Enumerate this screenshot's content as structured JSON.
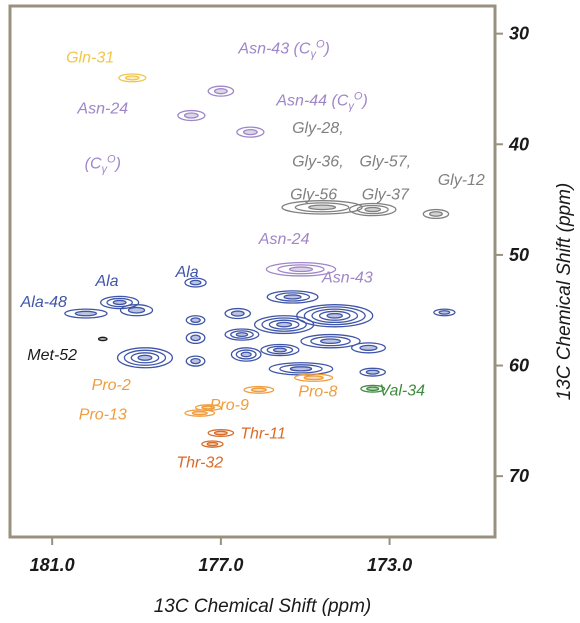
{
  "chart_data": {
    "type": "scatter",
    "subtype": "2D NMR contour spectrum",
    "x_axis": {
      "title": "13C Chemical Shift (ppm)",
      "reversed": true,
      "range": [
        182.0,
        170.5
      ],
      "ticks": [
        181.0,
        177.0,
        173.0
      ],
      "tick_labels": [
        "181.0",
        "177.0",
        "173.0"
      ]
    },
    "y_axis": {
      "title": "13C Chemical Shift (ppm)",
      "position": "right",
      "reversed": true,
      "range": [
        27.5,
        75.5
      ],
      "ticks": [
        30,
        40,
        50,
        60,
        70
      ],
      "tick_labels": [
        "30",
        "40",
        "50",
        "60",
        "70"
      ]
    },
    "grid": false,
    "colors": {
      "yellow": "#f0c64a",
      "purple": "#9f86c9",
      "gray": "#808080",
      "blue": "#3f55a8",
      "green": "#3f8b3f",
      "orange": "#ef9d3e",
      "darkorange": "#d96b28",
      "black": "#1a1a1a"
    },
    "labels": [
      {
        "text": "Gln-31",
        "x": 180.1,
        "y": 32.6,
        "color": "yellow"
      },
      {
        "text": "Asn-43 (CγO)",
        "x": 175.5,
        "y": 31.8,
        "color": "purple"
      },
      {
        "text": "Asn-44 (CγO)",
        "x": 174.6,
        "y": 36.5,
        "color": "purple"
      },
      {
        "text": "Asn-24",
        "x": 179.8,
        "y": 37.2,
        "color": "purple"
      },
      {
        "text": "(CγO)",
        "x": 179.8,
        "y": 42.2,
        "color": "purple"
      },
      {
        "text": "Gly-28,",
        "x": 174.7,
        "y": 39.0,
        "color": "gray"
      },
      {
        "text": "Gly-36,",
        "x": 174.7,
        "y": 42.0,
        "color": "gray"
      },
      {
        "text": "Gly-56",
        "x": 174.8,
        "y": 45.0,
        "color": "gray"
      },
      {
        "text": "Gly-57,",
        "x": 173.1,
        "y": 42.0,
        "color": "gray"
      },
      {
        "text": "Gly-37",
        "x": 173.1,
        "y": 45.0,
        "color": "gray"
      },
      {
        "text": "Gly-12",
        "x": 171.3,
        "y": 43.7,
        "color": "gray"
      },
      {
        "text": "Asn-24",
        "x": 175.5,
        "y": 49.0,
        "color": "purple"
      },
      {
        "text": "Asn-43",
        "x": 174.0,
        "y": 52.5,
        "color": "purple"
      },
      {
        "text": "Ala",
        "x": 179.7,
        "y": 52.8,
        "color": "blue"
      },
      {
        "text": "Ala",
        "x": 177.8,
        "y": 52.0,
        "color": "blue"
      },
      {
        "text": "Ala-48",
        "x": 181.2,
        "y": 54.7,
        "color": "blue"
      },
      {
        "text": "Met-52",
        "x": 181.0,
        "y": 59.5,
        "color": "black"
      },
      {
        "text": "Pro-2",
        "x": 179.6,
        "y": 62.2,
        "color": "orange"
      },
      {
        "text": "Pro-13",
        "x": 179.8,
        "y": 64.9,
        "color": "orange"
      },
      {
        "text": "Pro-9",
        "x": 176.8,
        "y": 64.0,
        "color": "orange"
      },
      {
        "text": "Pro-8",
        "x": 174.7,
        "y": 62.8,
        "color": "orange"
      },
      {
        "text": "Val-34",
        "x": 172.7,
        "y": 62.7,
        "color": "green"
      },
      {
        "text": "Thr-11",
        "x": 176.0,
        "y": 66.6,
        "color": "darkorange"
      },
      {
        "text": "Thr-32",
        "x": 177.5,
        "y": 69.2,
        "color": "darkorange"
      }
    ],
    "peaks": [
      {
        "x": 179.1,
        "y": 34.0,
        "rx": 0.32,
        "ry": 0.35,
        "color": "yellow",
        "levels": 2
      },
      {
        "x": 177.0,
        "y": 35.2,
        "rx": 0.3,
        "ry": 0.45,
        "color": "purple",
        "levels": 2
      },
      {
        "x": 177.7,
        "y": 37.4,
        "rx": 0.32,
        "ry": 0.45,
        "color": "purple",
        "levels": 2
      },
      {
        "x": 176.3,
        "y": 38.9,
        "rx": 0.32,
        "ry": 0.45,
        "color": "purple",
        "levels": 2
      },
      {
        "x": 174.6,
        "y": 45.7,
        "rx": 0.95,
        "ry": 0.6,
        "color": "gray",
        "levels": 3
      },
      {
        "x": 173.4,
        "y": 45.9,
        "rx": 0.55,
        "ry": 0.55,
        "color": "gray",
        "levels": 3
      },
      {
        "x": 171.9,
        "y": 46.3,
        "rx": 0.3,
        "ry": 0.4,
        "color": "gray",
        "levels": 2
      },
      {
        "x": 175.1,
        "y": 51.3,
        "rx": 0.82,
        "ry": 0.6,
        "color": "purple",
        "levels": 3
      },
      {
        "x": 179.4,
        "y": 54.3,
        "rx": 0.45,
        "ry": 0.55,
        "color": "blue",
        "levels": 3
      },
      {
        "x": 179.0,
        "y": 55.0,
        "rx": 0.38,
        "ry": 0.5,
        "color": "blue",
        "levels": 2
      },
      {
        "x": 180.2,
        "y": 55.3,
        "rx": 0.5,
        "ry": 0.4,
        "color": "blue",
        "levels": 2
      },
      {
        "x": 177.6,
        "y": 52.5,
        "rx": 0.25,
        "ry": 0.4,
        "color": "blue",
        "levels": 2
      },
      {
        "x": 177.6,
        "y": 55.9,
        "rx": 0.22,
        "ry": 0.4,
        "color": "blue",
        "levels": 2
      },
      {
        "x": 177.6,
        "y": 57.5,
        "rx": 0.22,
        "ry": 0.5,
        "color": "blue",
        "levels": 2
      },
      {
        "x": 178.8,
        "y": 59.3,
        "rx": 0.65,
        "ry": 0.9,
        "color": "blue",
        "levels": 4
      },
      {
        "x": 177.6,
        "y": 59.6,
        "rx": 0.22,
        "ry": 0.45,
        "color": "blue",
        "levels": 2
      },
      {
        "x": 176.6,
        "y": 55.3,
        "rx": 0.3,
        "ry": 0.45,
        "color": "blue",
        "levels": 2
      },
      {
        "x": 176.5,
        "y": 57.2,
        "rx": 0.4,
        "ry": 0.5,
        "color": "blue",
        "levels": 3
      },
      {
        "x": 176.4,
        "y": 59.0,
        "rx": 0.35,
        "ry": 0.6,
        "color": "blue",
        "levels": 3
      },
      {
        "x": 175.3,
        "y": 53.8,
        "rx": 0.6,
        "ry": 0.55,
        "color": "blue",
        "levels": 3
      },
      {
        "x": 175.5,
        "y": 56.3,
        "rx": 0.7,
        "ry": 0.8,
        "color": "blue",
        "levels": 4
      },
      {
        "x": 174.3,
        "y": 55.5,
        "rx": 0.9,
        "ry": 1.0,
        "color": "blue",
        "levels": 5
      },
      {
        "x": 174.4,
        "y": 57.8,
        "rx": 0.7,
        "ry": 0.6,
        "color": "blue",
        "levels": 3
      },
      {
        "x": 175.6,
        "y": 58.6,
        "rx": 0.45,
        "ry": 0.5,
        "color": "blue",
        "levels": 3
      },
      {
        "x": 175.1,
        "y": 60.3,
        "rx": 0.75,
        "ry": 0.55,
        "color": "blue",
        "levels": 3
      },
      {
        "x": 173.5,
        "y": 58.4,
        "rx": 0.4,
        "ry": 0.45,
        "color": "blue",
        "levels": 2
      },
      {
        "x": 173.4,
        "y": 60.6,
        "rx": 0.3,
        "ry": 0.35,
        "color": "blue",
        "levels": 2
      },
      {
        "x": 171.7,
        "y": 55.2,
        "rx": 0.25,
        "ry": 0.3,
        "color": "blue",
        "levels": 2
      },
      {
        "x": 179.8,
        "y": 57.6,
        "rx": 0.1,
        "ry": 0.15,
        "color": "black",
        "levels": 1
      },
      {
        "x": 177.3,
        "y": 63.8,
        "rx": 0.3,
        "ry": 0.25,
        "color": "orange",
        "levels": 2
      },
      {
        "x": 177.5,
        "y": 64.3,
        "rx": 0.35,
        "ry": 0.28,
        "color": "orange",
        "levels": 2
      },
      {
        "x": 176.1,
        "y": 62.2,
        "rx": 0.35,
        "ry": 0.3,
        "color": "orange",
        "levels": 2
      },
      {
        "x": 174.8,
        "y": 61.1,
        "rx": 0.45,
        "ry": 0.32,
        "color": "orange",
        "levels": 2
      },
      {
        "x": 173.4,
        "y": 62.1,
        "rx": 0.28,
        "ry": 0.3,
        "color": "green",
        "levels": 2
      },
      {
        "x": 177.0,
        "y": 66.1,
        "rx": 0.3,
        "ry": 0.3,
        "color": "darkorange",
        "levels": 2
      },
      {
        "x": 177.2,
        "y": 67.1,
        "rx": 0.25,
        "ry": 0.28,
        "color": "darkorange",
        "levels": 2
      }
    ]
  }
}
